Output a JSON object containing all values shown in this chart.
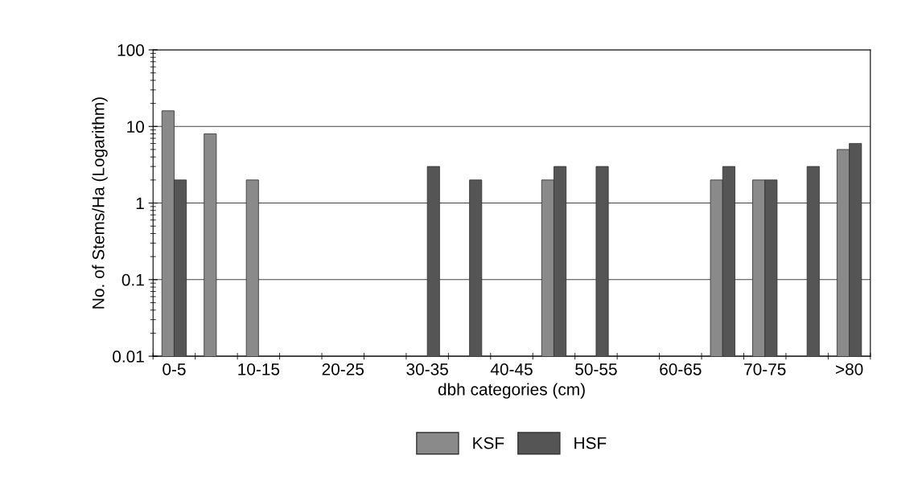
{
  "chart_data": {
    "type": "bar",
    "xlabel": "dbh categories (cm)",
    "ylabel": "No. of Stems/Ha (Logarithm)",
    "categories": [
      "0-5",
      null,
      "10-15",
      null,
      "20-25",
      null,
      "30-35",
      null,
      "40-45",
      null,
      "50-55",
      null,
      "60-65",
      null,
      "70-75",
      null,
      ">80"
    ],
    "series": [
      {
        "name": "KSF",
        "color": "#8a8a8a",
        "values": [
          16,
          8,
          2,
          null,
          null,
          null,
          null,
          null,
          null,
          2,
          null,
          null,
          null,
          2,
          2,
          null,
          5
        ]
      },
      {
        "name": "HSF",
        "color": "#555555",
        "values": [
          2,
          null,
          null,
          null,
          null,
          null,
          3,
          2,
          null,
          3,
          3,
          null,
          null,
          3,
          2,
          3,
          6
        ]
      }
    ],
    "log": true,
    "ylim": [
      0.01,
      100
    ],
    "yticks": [
      0.01,
      0.1,
      1,
      10,
      100
    ],
    "grid": "y",
    "legend": "bottom"
  }
}
